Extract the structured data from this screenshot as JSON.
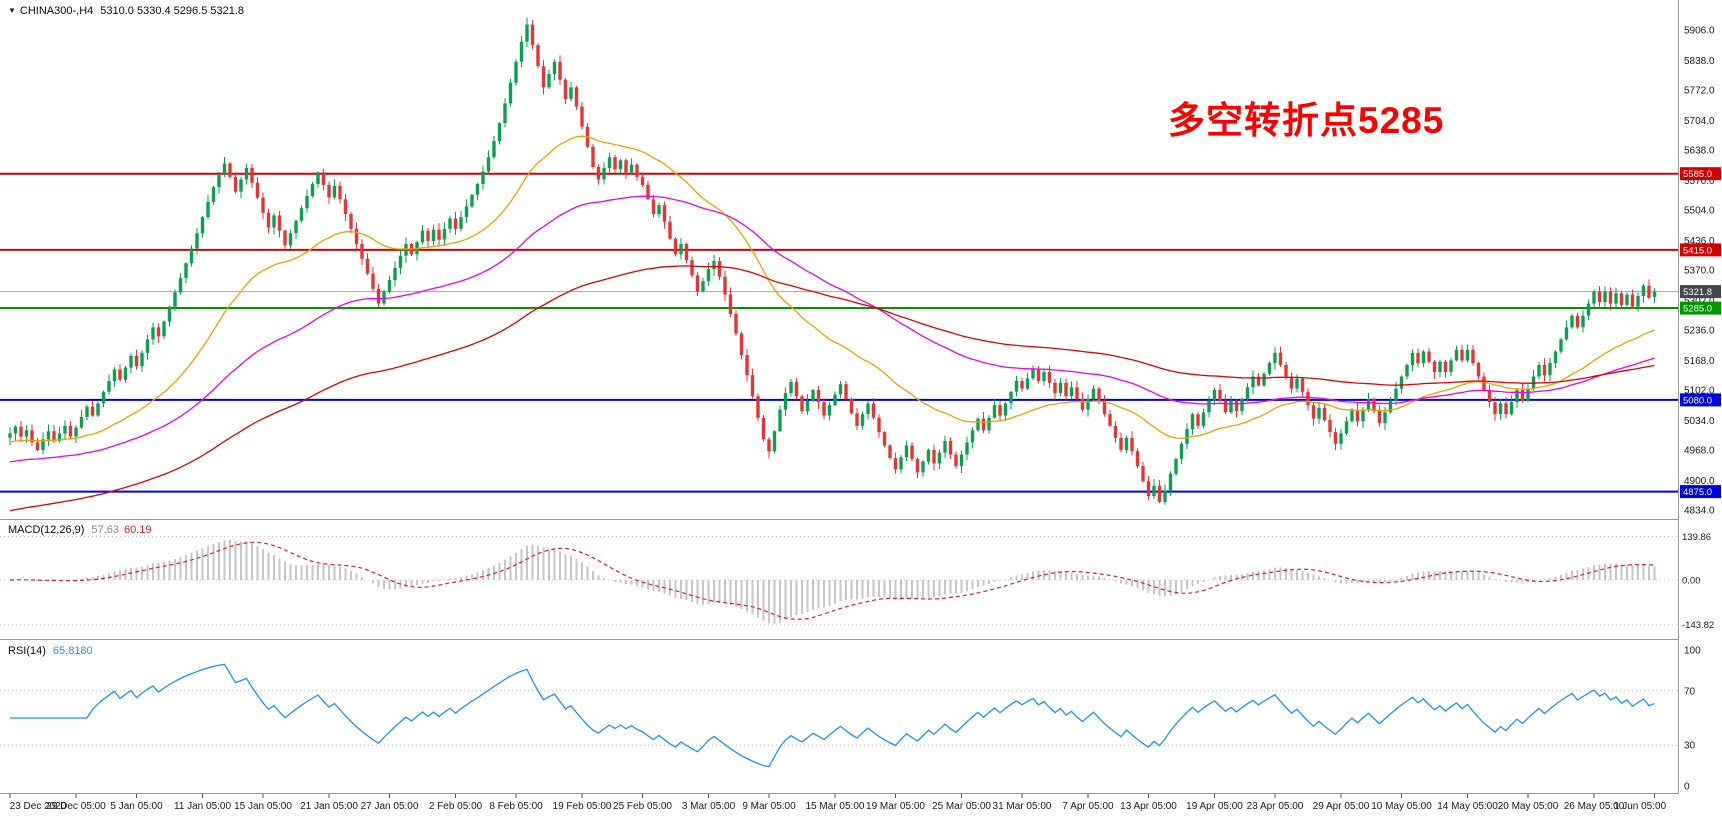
{
  "titlebar": {
    "title_symbol": "CHINA300-,H4",
    "title_ohlc": "5310.0 5330.4 5296.5 5321.8"
  },
  "annotation": {
    "text": "多空转折点5285",
    "color": "#ff0000"
  },
  "main_panel": {
    "price_labels": [
      "5906.0",
      "5838.0",
      "5772.0",
      "5704.0",
      "5638.0",
      "5570.0",
      "5504.0",
      "5436.0",
      "5370.0",
      "5302.0",
      "5236.0",
      "5168.0",
      "5102.0",
      "5034.0",
      "4968.0",
      "4900.0",
      "4834.0"
    ],
    "hlines": [
      {
        "value": 5585.0,
        "label": "5585.0",
        "color": "#d40000"
      },
      {
        "value": 5415.0,
        "label": "5415.0",
        "color": "#d40000"
      },
      {
        "value": 5285.0,
        "label": "5285.0",
        "color": "#009600"
      },
      {
        "value": 5080.0,
        "label": "5080.0",
        "color": "#0000e0"
      },
      {
        "value": 4875.0,
        "label": "4875.0",
        "color": "#0000e0"
      }
    ],
    "current_price": {
      "value": 5321.8,
      "label": "5321.8",
      "badge_bg": "#41454d",
      "line_color": "#a8a8a8"
    },
    "ma_lines": [
      {
        "name": "ma-fast",
        "period": 34,
        "seed": 4985,
        "color": "#f0a000"
      },
      {
        "name": "ma-mid",
        "period": 80,
        "seed": 4940,
        "color": "#f000f0"
      },
      {
        "name": "ma-slow",
        "period": 150,
        "seed": 4830,
        "color": "#e00000"
      }
    ]
  },
  "macd_panel": {
    "label": "MACD(12,26,9)",
    "value_main": "57.63",
    "value_signal": "60.19",
    "histogram_color": "#c6c6c6",
    "signal_color": "#e02020",
    "axis_labels": [
      {
        "text": "139.86",
        "value": 139.86
      },
      {
        "text": "0.00",
        "value": 0
      },
      {
        "text": "-143.82",
        "value": -143.82
      }
    ],
    "params": {
      "fast": 12,
      "slow": 26,
      "signal": 9
    }
  },
  "rsi_panel": {
    "label": "RSI(14)",
    "value": "65.8180",
    "line_color": "#1E90FF",
    "period": 14,
    "levels": [
      70,
      30
    ],
    "axis_labels": [
      {
        "text": "100",
        "value": 100
      },
      {
        "text": "70",
        "value": 70
      },
      {
        "text": "30",
        "value": 30
      },
      {
        "text": "0",
        "value": 0
      }
    ]
  },
  "chart_data": {
    "type": "candlestick",
    "symbol": "CHINA300-",
    "timeframe": "H4",
    "title": "CHINA300-,H4",
    "up_color": "#0aa052",
    "down_color": "#e63333",
    "ylim": [
      4834,
      5906
    ],
    "support_resistance": [
      5585.0,
      5415.0,
      5285.0,
      5080.0,
      4875.0
    ],
    "x_labels": [
      "23 Dec 2020",
      "29 Dec 05:00",
      "5 Jan 05:00",
      "11 Jan 05:00",
      "15 Jan 05:00",
      "21 Jan 05:00",
      "27 Jan 05:00",
      "2 Feb 05:00",
      "8 Feb 05:00",
      "19 Feb 05:00",
      "25 Feb 05:00",
      "3 Mar 05:00",
      "9 Mar 05:00",
      "15 Mar 05:00",
      "19 Mar 05:00",
      "25 Mar 05:00",
      "31 Mar 05:00",
      "7 Apr 05:00",
      "13 Apr 05:00",
      "19 Apr 05:00",
      "23 Apr 05:00",
      "29 Apr 05:00",
      "10 May 05:00",
      "14 May 05:00",
      "20 May 05:00",
      "26 May 05:00",
      "1 Jun 05:00"
    ],
    "closes": [
      5005,
      5020,
      4998,
      5012,
      4985,
      4968,
      4992,
      5010,
      4988,
      5005,
      5022,
      4998,
      5018,
      5042,
      5065,
      5045,
      5072,
      5098,
      5122,
      5148,
      5125,
      5152,
      5178,
      5155,
      5185,
      5215,
      5242,
      5222,
      5255,
      5288,
      5320,
      5352,
      5385,
      5418,
      5452,
      5488,
      5522,
      5555,
      5582,
      5608,
      5578,
      5545,
      5572,
      5598,
      5565,
      5532,
      5498,
      5465,
      5492,
      5458,
      5425,
      5452,
      5480,
      5508,
      5535,
      5562,
      5588,
      5560,
      5532,
      5558,
      5528,
      5495,
      5462,
      5428,
      5395,
      5362,
      5328,
      5295,
      5322,
      5348,
      5375,
      5402,
      5428,
      5405,
      5432,
      5458,
      5435,
      5460,
      5438,
      5462,
      5485,
      5462,
      5488,
      5512,
      5538,
      5562,
      5590,
      5622,
      5658,
      5698,
      5742,
      5788,
      5835,
      5880,
      5918,
      5872,
      5825,
      5778,
      5808,
      5835,
      5795,
      5752,
      5778,
      5735,
      5690,
      5645,
      5600,
      5572,
      5598,
      5622,
      5595,
      5615,
      5588,
      5605,
      5578,
      5560,
      5528,
      5495,
      5515,
      5478,
      5440,
      5405,
      5428,
      5392,
      5358,
      5322,
      5345,
      5372,
      5390,
      5355,
      5315,
      5272,
      5228,
      5180,
      5135,
      5088,
      5040,
      4992,
      4965,
      5010,
      5058,
      5095,
      5120,
      5088,
      5055,
      5078,
      5102,
      5075,
      5045,
      5068,
      5092,
      5115,
      5082,
      5050,
      5022,
      5048,
      5072,
      5040,
      5008,
      4978,
      4950,
      4925,
      4952,
      4978,
      4948,
      4918,
      4942,
      4968,
      4938,
      4962,
      4988,
      4958,
      4932,
      4958,
      4985,
      5012,
      5038,
      5012,
      5040,
      5068,
      5045,
      5072,
      5098,
      5122,
      5105,
      5128,
      5148,
      5122,
      5142,
      5118,
      5095,
      5118,
      5088,
      5108,
      5082,
      5058,
      5082,
      5105,
      5078,
      5048,
      5022,
      4995,
      4968,
      4995,
      4965,
      4932,
      4898,
      4865,
      4888,
      4852,
      4878,
      4915,
      4948,
      4982,
      5015,
      5048,
      5022,
      5052,
      5078,
      5102,
      5078,
      5052,
      5078,
      5055,
      5082,
      5108,
      5132,
      5112,
      5138,
      5162,
      5185,
      5158,
      5132,
      5105,
      5128,
      5098,
      5068,
      5038,
      5062,
      5035,
      5008,
      4982,
      5005,
      5032,
      5058,
      5032,
      5058,
      5082,
      5055,
      5028,
      5052,
      5078,
      5105,
      5132,
      5158,
      5185,
      5162,
      5188,
      5165,
      5142,
      5165,
      5142,
      5168,
      5192,
      5168,
      5192,
      5162,
      5132,
      5102,
      5075,
      5048,
      5072,
      5048,
      5075,
      5102,
      5078,
      5105,
      5132,
      5158,
      5135,
      5162,
      5188,
      5215,
      5242,
      5268,
      5242,
      5268,
      5295,
      5322,
      5298,
      5322,
      5295,
      5318,
      5292,
      5315,
      5288,
      5312,
      5335,
      5308,
      5321.8
    ],
    "last_candle": {
      "open": 5310.0,
      "high": 5330.4,
      "low": 5296.5,
      "close": 5321.8
    },
    "indicators": {
      "macd": {
        "fast": 12,
        "slow": 26,
        "signal": 9,
        "current": [
          57.63,
          60.19
        ],
        "axis_range": [
          -143.82,
          139.86
        ]
      },
      "rsi": {
        "period": 14,
        "current": 65.818,
        "levels": [
          70,
          30
        ],
        "range": [
          0,
          100
        ]
      }
    }
  }
}
